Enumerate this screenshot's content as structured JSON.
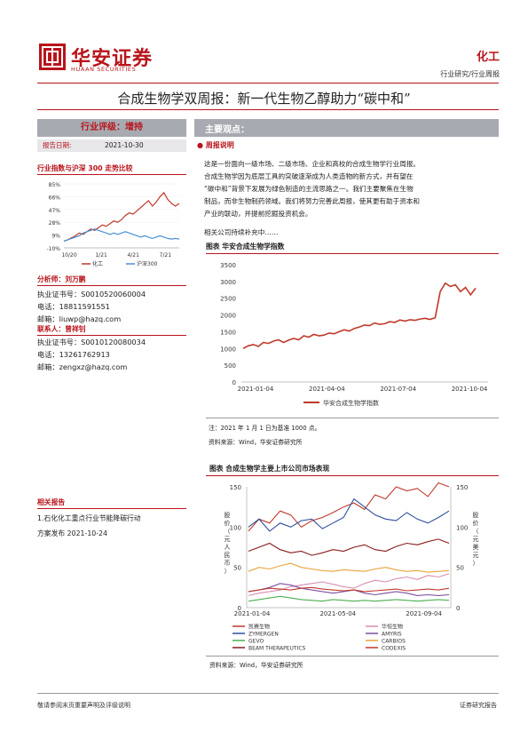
{
  "header": {
    "logo_cn": "华安证券",
    "logo_en": "HUAAN SECURITIES",
    "sector": "化工",
    "subsector": "行业研究/行业周报"
  },
  "title": "合成生物学双周报：新一代生物乙醇助力“碳中和”",
  "sidebar": {
    "rating_label": "行业评级：",
    "rating_value": "增持",
    "date_label": "报告日期:",
    "date_value": "2021-10-30",
    "index_chart_title": "行业指数与沪深 300 走势比较",
    "analyst_label": "分析师：",
    "analyst_name": "刘万鹏",
    "analyst_cert": "执业证书号：S0010520060004",
    "analyst_phone": "电话：18811591551",
    "analyst_email": "邮箱：liuwp@hazq.com",
    "contact_label": "联系人：",
    "contact_name": "曾祥钊",
    "contact_cert": "执业证书号：S0010120080034",
    "contact_phone": "电话：13261762913",
    "contact_email": "邮箱：zengxz@hazq.com",
    "related_title": "相关报告",
    "related_items": [
      "1.石化化工重点行业节能降碳行动",
      "方案发布 2021-10-24"
    ]
  },
  "main": {
    "section_title": "主要观点：",
    "bullet_title": "周报说明",
    "paragraph": [
      "这是一份面向一级市场、二级市场、企业和高校的合成生物学行业周报。",
      "合成生物学因为底层工具的突破逐渐成为人类造物的新方式，并有望在",
      "“碳中和”背景下发展为绿色制造的主流思路之一。我们主要聚焦在生物",
      "制品，而非生物制药领域。我们将努力完善此周报，使其更有助于资本和",
      "产业的联动，并提前挖掘投资机会。"
    ],
    "followup": "相关公司持续补充中……",
    "fig1_title": "图表  华安合成生物学指数",
    "fig1_note": "注：2021 年 1 月 1 日为基准 1000 点。",
    "fig1_source": "资料来源：Wind，华安证券研究所",
    "fig2_title": "图表  合成生物学主要上市公司市场表现",
    "fig2_source": "资料来源：Wind，华安证券研究所"
  },
  "footer": {
    "left": "敬请参阅末页重要声明及评级说明",
    "right": "证券研究报告"
  },
  "colors": {
    "brand_red": "#b8141b",
    "grey_bar": "#a7aab1",
    "index_line": "#c0392b",
    "hs300_line": "#4a8fd4"
  },
  "chart_data": [
    {
      "type": "line",
      "id": "sector-vs-hs300",
      "xlabel": "",
      "ylabel": "",
      "x_ticks": [
        "10/20",
        "1/21",
        "4/21",
        "7/21"
      ],
      "y_ticks": [
        "-10%",
        "9%",
        "28%",
        "47%",
        "66%",
        "85%"
      ],
      "ylim": [
        -10,
        85
      ],
      "series": [
        {
          "name": "化工",
          "color": "#c0392b",
          "values": [
            0,
            2,
            5,
            8,
            12,
            10,
            14,
            18,
            16,
            20,
            24,
            22,
            26,
            30,
            28,
            32,
            38,
            42,
            40,
            45,
            50,
            55,
            60,
            52,
            58,
            66,
            72,
            62,
            56,
            52,
            56
          ]
        },
        {
          "name": "沪深300",
          "color": "#4a8fd4",
          "values": [
            0,
            2,
            4,
            6,
            8,
            12,
            14,
            16,
            18,
            16,
            14,
            12,
            10,
            12,
            10,
            12,
            14,
            12,
            10,
            8,
            6,
            8,
            6,
            4,
            6,
            8,
            6,
            4,
            3,
            4,
            3
          ]
        }
      ]
    },
    {
      "type": "line",
      "id": "huaan-synbio-index",
      "title": "",
      "x_ticks": [
        "2021-01-04",
        "2021-04-04",
        "2021-07-04",
        "2021-10-04"
      ],
      "y_ticks": [
        0,
        500,
        1000,
        1500,
        2000,
        2500,
        3000,
        3500
      ],
      "ylim": [
        0,
        3500
      ],
      "grid": false,
      "legend": "bottom",
      "series": [
        {
          "name": "华安合成生物学指数",
          "color": "#c0392b",
          "values": [
            1000,
            1080,
            1120,
            1060,
            1180,
            1150,
            1220,
            1260,
            1180,
            1250,
            1300,
            1260,
            1380,
            1340,
            1420,
            1380,
            1400,
            1460,
            1440,
            1500,
            1560,
            1520,
            1600,
            1640,
            1700,
            1680,
            1760,
            1720,
            1740,
            1800,
            1780,
            1850,
            1820,
            1860,
            1840,
            1880,
            1900,
            1870,
            1920,
            2700,
            2950,
            2850,
            2900,
            2700,
            2820,
            2600,
            2800
          ]
        }
      ]
    },
    {
      "type": "line",
      "id": "listed-companies",
      "x_ticks": [
        "2021-01-04",
        "2021-05-04",
        "2021-09-04"
      ],
      "y_left_ticks": [
        0,
        50,
        100,
        150
      ],
      "y_right_ticks": [
        0,
        50,
        100,
        150
      ],
      "ylim_left": [
        0,
        150
      ],
      "ylim_right": [
        0,
        150
      ],
      "ylabel_left": "股价（元人民币）",
      "ylabel_right": "股价（元美元）",
      "legend": "bottom",
      "series": [
        {
          "name": "凯赛生物",
          "color": "#c0392b",
          "values": [
            95,
            110,
            105,
            120,
            115,
            100,
            108,
            112,
            118,
            125,
            130,
            122,
            140,
            135,
            150,
            145,
            148,
            138,
            155,
            150
          ]
        },
        {
          "name": "华恒生物",
          "color": "#d98cb3",
          "values": [
            15,
            18,
            20,
            22,
            26,
            28,
            30,
            32,
            29,
            26,
            24,
            30,
            34,
            32,
            36,
            38,
            35,
            40,
            38,
            42
          ]
        },
        {
          "name": "ZYMERGEN",
          "color": "#2c4f9e",
          "values": [
            100,
            110,
            95,
            105,
            100,
            108,
            110,
            98,
            105,
            112,
            135,
            125,
            115,
            110,
            108,
            118,
            110,
            105,
            112,
            120
          ]
        },
        {
          "name": "AMYRIS",
          "color": "#7b4fa0",
          "values": [
            20,
            22,
            25,
            30,
            28,
            24,
            22,
            20,
            18,
            20,
            22,
            18,
            16,
            18,
            20,
            18,
            15,
            16,
            15,
            16
          ]
        },
        {
          "name": "GEVO",
          "color": "#4caf50",
          "values": [
            8,
            10,
            12,
            14,
            12,
            10,
            9,
            8,
            10,
            9,
            8,
            9,
            8,
            9,
            10,
            9,
            8,
            9,
            10,
            9
          ]
        },
        {
          "name": "CARBIOS",
          "color": "#e8a33b",
          "values": [
            45,
            50,
            48,
            52,
            55,
            50,
            48,
            46,
            45,
            47,
            46,
            45,
            48,
            50,
            47,
            45,
            46,
            44,
            45,
            46
          ]
        },
        {
          "name": "BEAM THERAPEUTICS",
          "color": "#8b1a1a",
          "values": [
            70,
            75,
            80,
            72,
            68,
            70,
            65,
            68,
            72,
            70,
            75,
            78,
            72,
            70,
            76,
            80,
            78,
            82,
            85,
            80
          ]
        },
        {
          "name": "CODEXIS",
          "color": "#c0392b",
          "values": [
            20,
            22,
            24,
            23,
            22,
            24,
            25,
            23,
            22,
            21,
            22,
            20,
            21,
            22,
            23,
            21,
            22,
            23,
            22,
            24
          ]
        }
      ]
    }
  ]
}
